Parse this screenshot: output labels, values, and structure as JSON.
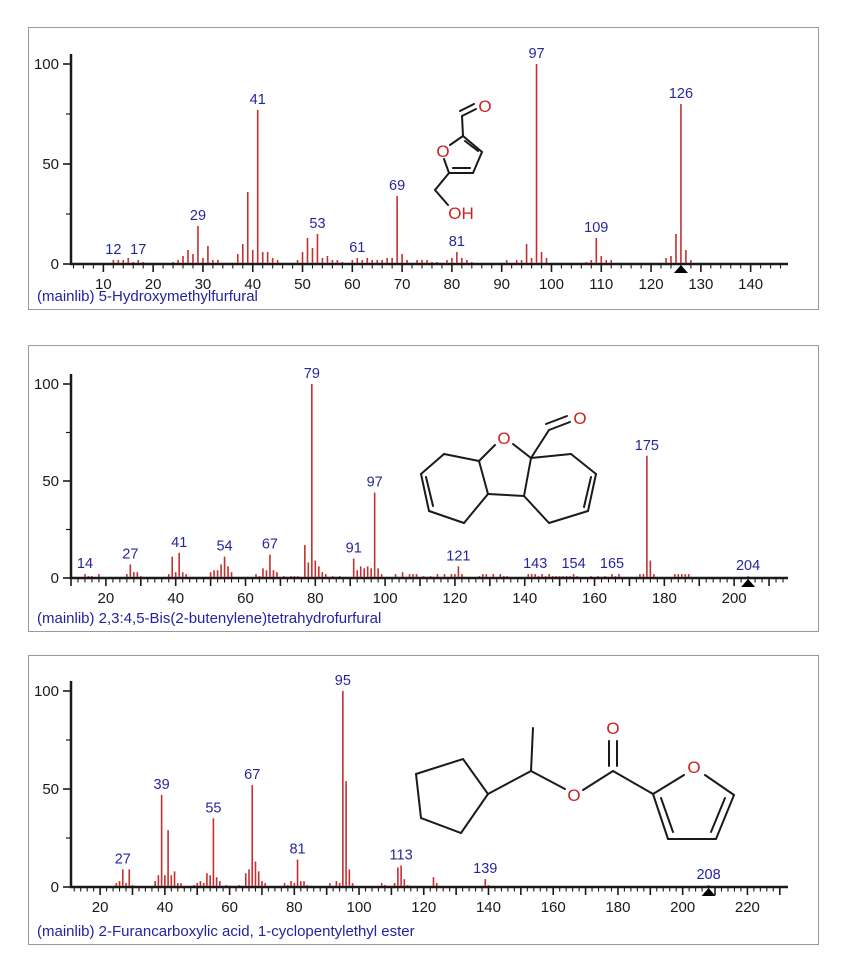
{
  "colors": {
    "peak": "#c42f2f",
    "peak_label": "#26269b",
    "axis": "#1a1a1a",
    "caption": "#2323a0",
    "molecular_ion_marker": "#000000",
    "structure_bond": "#1a1a1a",
    "structure_atom": "#cc2222",
    "panel_border": "#9a9a9a",
    "background": "#ffffff"
  },
  "chart_data": [
    {
      "type": "bar",
      "caption": "(mainlib) 5-Hydroxymethylfurfural",
      "library": "mainlib",
      "compound_name": "5-Hydroxymethylfurfural",
      "ylim": [
        0,
        100
      ],
      "y_tick_labels": [
        0,
        50,
        100
      ],
      "y_minor_ticks": [
        25,
        75
      ],
      "xlim": [
        3.5,
        146.5
      ],
      "x_tick_labels": [
        10,
        20,
        30,
        40,
        50,
        60,
        70,
        80,
        90,
        100,
        110,
        120,
        130,
        140
      ],
      "x_minor_tick_step": 2,
      "x_major_tick_step": 10,
      "molecular_ion_mz": 126,
      "labeled_peaks": [
        12,
        17,
        29,
        41,
        53,
        61,
        69,
        81,
        97,
        109,
        126
      ],
      "peaks": [
        [
          12,
          2
        ],
        [
          13,
          2
        ],
        [
          14,
          2
        ],
        [
          15,
          3
        ],
        [
          16,
          1
        ],
        [
          17,
          2
        ],
        [
          18,
          1
        ],
        [
          24,
          1
        ],
        [
          25,
          2
        ],
        [
          26,
          4
        ],
        [
          27,
          7
        ],
        [
          28,
          5
        ],
        [
          29,
          19
        ],
        [
          30,
          3
        ],
        [
          31,
          9
        ],
        [
          32,
          2
        ],
        [
          33,
          2
        ],
        [
          37,
          5
        ],
        [
          38,
          10
        ],
        [
          39,
          36
        ],
        [
          40,
          7
        ],
        [
          41,
          77
        ],
        [
          42,
          6
        ],
        [
          43,
          6
        ],
        [
          44,
          3
        ],
        [
          45,
          2
        ],
        [
          49,
          2
        ],
        [
          50,
          6
        ],
        [
          51,
          13
        ],
        [
          52,
          8
        ],
        [
          53,
          15
        ],
        [
          54,
          3
        ],
        [
          55,
          4
        ],
        [
          56,
          2
        ],
        [
          57,
          2
        ],
        [
          58,
          1
        ],
        [
          60,
          2
        ],
        [
          61,
          3
        ],
        [
          62,
          2
        ],
        [
          63,
          3
        ],
        [
          64,
          2
        ],
        [
          65,
          2
        ],
        [
          66,
          2
        ],
        [
          67,
          3
        ],
        [
          68,
          3
        ],
        [
          69,
          34
        ],
        [
          70,
          5
        ],
        [
          71,
          2
        ],
        [
          73,
          2
        ],
        [
          74,
          2
        ],
        [
          75,
          2
        ],
        [
          76,
          1
        ],
        [
          77,
          1
        ],
        [
          79,
          2
        ],
        [
          80,
          3
        ],
        [
          81,
          6
        ],
        [
          82,
          3
        ],
        [
          83,
          2
        ],
        [
          84,
          1
        ],
        [
          91,
          2
        ],
        [
          93,
          2
        ],
        [
          94,
          2
        ],
        [
          95,
          10
        ],
        [
          96,
          3
        ],
        [
          97,
          100
        ],
        [
          98,
          6
        ],
        [
          99,
          3
        ],
        [
          107,
          1
        ],
        [
          108,
          2
        ],
        [
          109,
          13
        ],
        [
          110,
          4
        ],
        [
          111,
          2
        ],
        [
          112,
          2
        ],
        [
          123,
          3
        ],
        [
          124,
          4
        ],
        [
          125,
          15
        ],
        [
          126,
          80
        ],
        [
          127,
          7
        ],
        [
          128,
          2
        ]
      ],
      "structure_atom_labels": [
        "O",
        "O",
        "OH"
      ]
    },
    {
      "type": "bar",
      "caption": "(mainlib) 2,3:4,5-Bis(2-butenylene)tetrahydrofurfural",
      "library": "mainlib",
      "compound_name": "2,3:4,5-Bis(2-butenylene)tetrahydrofurfural",
      "ylim": [
        0,
        100
      ],
      "y_tick_labels": [
        0,
        50,
        100
      ],
      "y_minor_ticks": [
        25,
        75
      ],
      "xlim": [
        10,
        214
      ],
      "x_tick_labels": [
        20,
        40,
        60,
        80,
        100,
        120,
        140,
        160,
        180,
        200
      ],
      "x_minor_tick_step": 2,
      "x_major_tick_step": 10,
      "molecular_ion_mz": 204,
      "labeled_peaks": [
        14,
        27,
        41,
        54,
        67,
        79,
        91,
        97,
        121,
        143,
        154,
        165,
        175,
        204
      ],
      "peaks": [
        [
          14,
          2
        ],
        [
          15,
          1
        ],
        [
          16,
          1
        ],
        [
          18,
          2
        ],
        [
          26,
          2
        ],
        [
          27,
          7
        ],
        [
          28,
          3
        ],
        [
          29,
          3
        ],
        [
          30,
          1
        ],
        [
          38,
          2
        ],
        [
          39,
          11
        ],
        [
          40,
          3
        ],
        [
          41,
          13
        ],
        [
          42,
          3
        ],
        [
          43,
          2
        ],
        [
          50,
          3
        ],
        [
          51,
          4
        ],
        [
          52,
          4
        ],
        [
          53,
          7
        ],
        [
          54,
          11
        ],
        [
          55,
          6
        ],
        [
          56,
          3
        ],
        [
          63,
          2
        ],
        [
          64,
          1
        ],
        [
          65,
          5
        ],
        [
          66,
          4
        ],
        [
          67,
          12
        ],
        [
          68,
          4
        ],
        [
          69,
          3
        ],
        [
          71,
          1
        ],
        [
          73,
          1
        ],
        [
          74,
          1
        ],
        [
          75,
          1
        ],
        [
          77,
          17
        ],
        [
          78,
          8
        ],
        [
          79,
          100
        ],
        [
          80,
          9
        ],
        [
          81,
          6
        ],
        [
          82,
          3
        ],
        [
          83,
          2
        ],
        [
          85,
          1
        ],
        [
          87,
          1
        ],
        [
          91,
          10
        ],
        [
          92,
          4
        ],
        [
          93,
          6
        ],
        [
          94,
          5
        ],
        [
          95,
          6
        ],
        [
          96,
          5
        ],
        [
          97,
          44
        ],
        [
          98,
          5
        ],
        [
          99,
          2
        ],
        [
          103,
          2
        ],
        [
          105,
          3
        ],
        [
          107,
          2
        ],
        [
          108,
          2
        ],
        [
          109,
          2
        ],
        [
          111,
          1
        ],
        [
          113,
          1
        ],
        [
          115,
          2
        ],
        [
          117,
          2
        ],
        [
          119,
          2
        ],
        [
          120,
          2
        ],
        [
          121,
          6
        ],
        [
          122,
          2
        ],
        [
          127,
          1
        ],
        [
          128,
          2
        ],
        [
          129,
          2
        ],
        [
          131,
          2
        ],
        [
          133,
          2
        ],
        [
          134,
          1
        ],
        [
          135,
          1
        ],
        [
          141,
          2
        ],
        [
          142,
          2
        ],
        [
          143,
          2
        ],
        [
          144,
          1
        ],
        [
          145,
          2
        ],
        [
          146,
          1
        ],
        [
          147,
          2
        ],
        [
          148,
          1
        ],
        [
          149,
          1
        ],
        [
          150,
          1
        ],
        [
          151,
          1
        ],
        [
          152,
          1
        ],
        [
          153,
          1
        ],
        [
          154,
          2
        ],
        [
          155,
          1
        ],
        [
          159,
          1
        ],
        [
          161,
          1
        ],
        [
          163,
          1
        ],
        [
          165,
          2
        ],
        [
          166,
          1
        ],
        [
          167,
          2
        ],
        [
          173,
          2
        ],
        [
          174,
          2
        ],
        [
          175,
          63
        ],
        [
          176,
          9
        ],
        [
          177,
          2
        ],
        [
          183,
          2
        ],
        [
          184,
          2
        ],
        [
          185,
          2
        ],
        [
          186,
          2
        ],
        [
          187,
          2
        ],
        [
          204,
          1
        ]
      ],
      "structure_atom_labels": [
        "O",
        "O"
      ]
    },
    {
      "type": "bar",
      "caption": "(mainlib) 2-Furancarboxylic acid, 1-cyclopentylethyl ester",
      "library": "mainlib",
      "compound_name": "2-Furancarboxylic acid, 1-cyclopentylethyl ester",
      "ylim": [
        0,
        100
      ],
      "y_tick_labels": [
        0,
        50,
        100
      ],
      "y_minor_ticks": [
        25,
        75
      ],
      "xlim": [
        11,
        231
      ],
      "x_tick_labels": [
        20,
        40,
        60,
        80,
        100,
        120,
        140,
        160,
        180,
        200,
        220
      ],
      "x_minor_tick_step": 2,
      "x_major_tick_step": 10,
      "molecular_ion_mz": 208,
      "labeled_peaks": [
        27,
        39,
        55,
        67,
        81,
        95,
        113,
        139,
        208
      ],
      "peaks": [
        [
          25,
          2
        ],
        [
          26,
          3
        ],
        [
          27,
          9
        ],
        [
          28,
          2
        ],
        [
          29,
          9
        ],
        [
          30,
          1
        ],
        [
          37,
          3
        ],
        [
          38,
          6
        ],
        [
          39,
          47
        ],
        [
          40,
          6
        ],
        [
          41,
          29
        ],
        [
          42,
          6
        ],
        [
          43,
          8
        ],
        [
          44,
          2
        ],
        [
          45,
          2
        ],
        [
          49,
          1
        ],
        [
          50,
          2
        ],
        [
          51,
          3
        ],
        [
          52,
          2
        ],
        [
          53,
          7
        ],
        [
          54,
          6
        ],
        [
          55,
          35
        ],
        [
          56,
          5
        ],
        [
          57,
          3
        ],
        [
          59,
          1
        ],
        [
          63,
          1
        ],
        [
          65,
          7
        ],
        [
          66,
          9
        ],
        [
          67,
          52
        ],
        [
          68,
          13
        ],
        [
          69,
          8
        ],
        [
          70,
          3
        ],
        [
          71,
          2
        ],
        [
          77,
          2
        ],
        [
          78,
          1
        ],
        [
          79,
          3
        ],
        [
          80,
          2
        ],
        [
          81,
          14
        ],
        [
          82,
          3
        ],
        [
          83,
          3
        ],
        [
          84,
          1
        ],
        [
          91,
          2
        ],
        [
          93,
          3
        ],
        [
          94,
          2
        ],
        [
          95,
          100
        ],
        [
          96,
          54
        ],
        [
          97,
          9
        ],
        [
          98,
          2
        ],
        [
          107,
          2
        ],
        [
          108,
          1
        ],
        [
          111,
          2
        ],
        [
          112,
          10
        ],
        [
          113,
          11
        ],
        [
          114,
          4
        ],
        [
          115,
          1
        ],
        [
          123,
          5
        ],
        [
          124,
          2
        ],
        [
          139,
          4
        ],
        [
          140,
          1
        ],
        [
          208,
          1
        ]
      ],
      "structure_atom_labels": [
        "O",
        "O",
        "O"
      ]
    }
  ]
}
